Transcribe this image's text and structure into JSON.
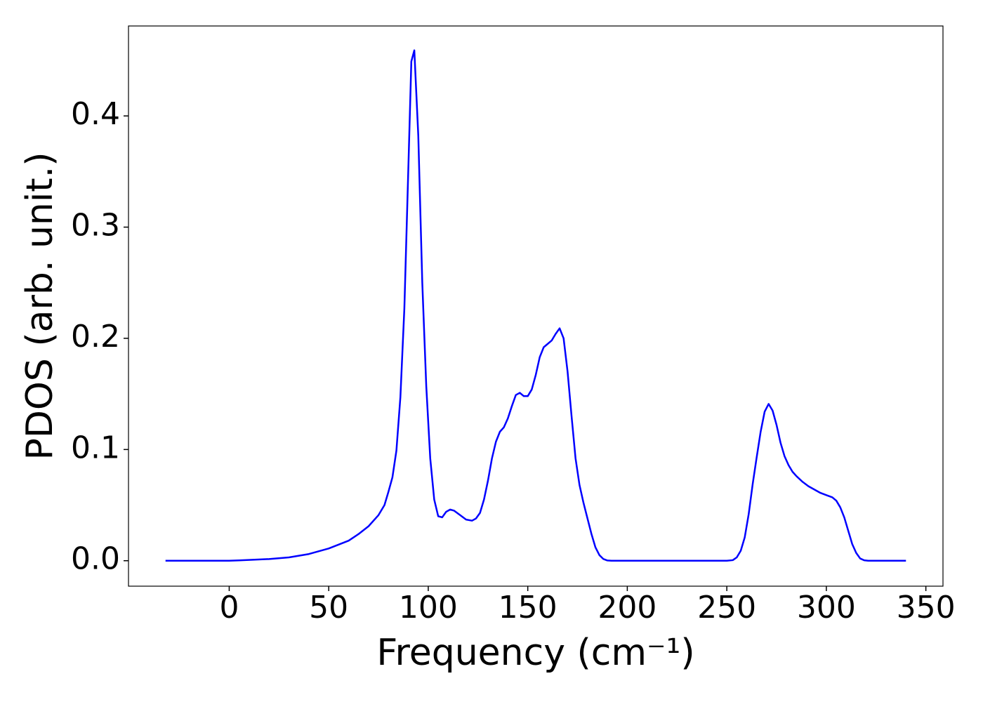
{
  "chart_data": {
    "type": "line",
    "xlabel": "Frequency (cm⁻¹)",
    "ylabel": "PDOS (arb. unit.)",
    "x": [
      -32,
      0,
      5,
      20,
      30,
      40,
      50,
      60,
      65,
      70,
      75,
      78,
      80,
      82,
      84,
      86,
      88,
      90,
      91.5,
      93,
      95,
      97,
      99,
      101,
      103,
      105,
      107,
      109,
      111,
      113,
      116,
      119,
      122,
      124,
      126,
      128,
      130,
      132,
      134,
      136,
      138,
      140,
      142,
      144,
      146,
      148,
      150,
      152,
      154,
      156,
      158,
      160,
      162,
      164,
      166,
      168,
      170,
      172,
      174,
      176,
      178,
      180,
      182,
      184,
      186,
      188,
      190,
      192,
      250,
      253,
      255,
      257,
      259,
      261,
      263,
      265,
      267,
      269,
      271,
      273,
      275,
      277,
      279,
      281,
      283,
      285,
      288,
      291,
      294,
      297,
      300,
      303,
      305,
      307,
      309,
      311,
      313,
      315,
      317,
      319,
      321,
      340
    ],
    "series": [
      {
        "color": "#0000ff",
        "values": [
          0,
          0,
          0.0003,
          0.0015,
          0.003,
          0.006,
          0.011,
          0.018,
          0.024,
          0.031,
          0.041,
          0.05,
          0.062,
          0.075,
          0.099,
          0.147,
          0.227,
          0.353,
          0.449,
          0.459,
          0.382,
          0.25,
          0.157,
          0.092,
          0.055,
          0.04,
          0.039,
          0.044,
          0.046,
          0.045,
          0.041,
          0.037,
          0.036,
          0.038,
          0.043,
          0.055,
          0.072,
          0.092,
          0.107,
          0.116,
          0.12,
          0.128,
          0.139,
          0.149,
          0.151,
          0.148,
          0.148,
          0.154,
          0.167,
          0.183,
          0.192,
          0.195,
          0.198,
          0.204,
          0.209,
          0.2,
          0.17,
          0.13,
          0.092,
          0.068,
          0.052,
          0.038,
          0.024,
          0.012,
          0.005,
          0.0015,
          0.0002,
          0,
          0,
          0.0005,
          0.003,
          0.009,
          0.021,
          0.042,
          0.069,
          0.093,
          0.116,
          0.134,
          0.141,
          0.135,
          0.122,
          0.106,
          0.094,
          0.086,
          0.08,
          0.076,
          0.071,
          0.067,
          0.064,
          0.061,
          0.059,
          0.057,
          0.054,
          0.048,
          0.039,
          0.027,
          0.015,
          0.007,
          0.002,
          0.0004,
          0,
          0
        ]
      }
    ],
    "xlim": [
      -50.6,
      358.6
    ],
    "ylim": [
      -0.0229,
      0.4809
    ],
    "xticks": [
      0,
      50,
      100,
      150,
      200,
      250,
      300,
      350
    ],
    "yticks": [
      {
        "value": 0,
        "label": "0.0"
      },
      0.1,
      0.2,
      0.3,
      0.4
    ],
    "grid": false
  }
}
